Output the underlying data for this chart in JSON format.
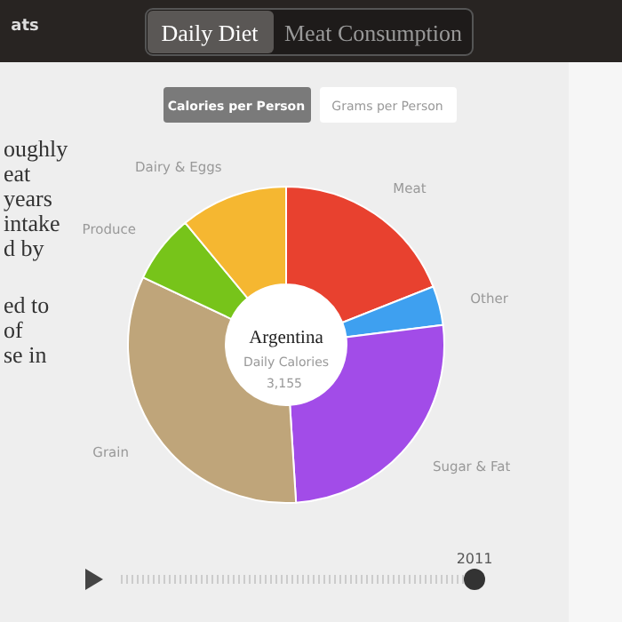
{
  "chart_data": {
    "type": "donut",
    "title": "Argentina",
    "subtitle": "Daily Calories",
    "categories": [
      "Meat",
      "Other",
      "Sugar & Fat",
      "Grain",
      "Produce",
      "Dairy & Eggs"
    ],
    "values": [
      19,
      4,
      26,
      33,
      7,
      11
    ],
    "colors": [
      "#e8412f",
      "#3ea0f0",
      "#a24ce8",
      "#bfa57a",
      "#77c41a",
      "#f5b731"
    ],
    "annotations": [
      "ats",
      "Daily Diet",
      "Meat Consumption",
      "Calories per Person",
      "Grams per Person",
      "oughly",
      "eat",
      "years",
      "intake",
      "d by",
      "ed to",
      "of",
      "se in",
      "3,155",
      "2011"
    ]
  }
}
